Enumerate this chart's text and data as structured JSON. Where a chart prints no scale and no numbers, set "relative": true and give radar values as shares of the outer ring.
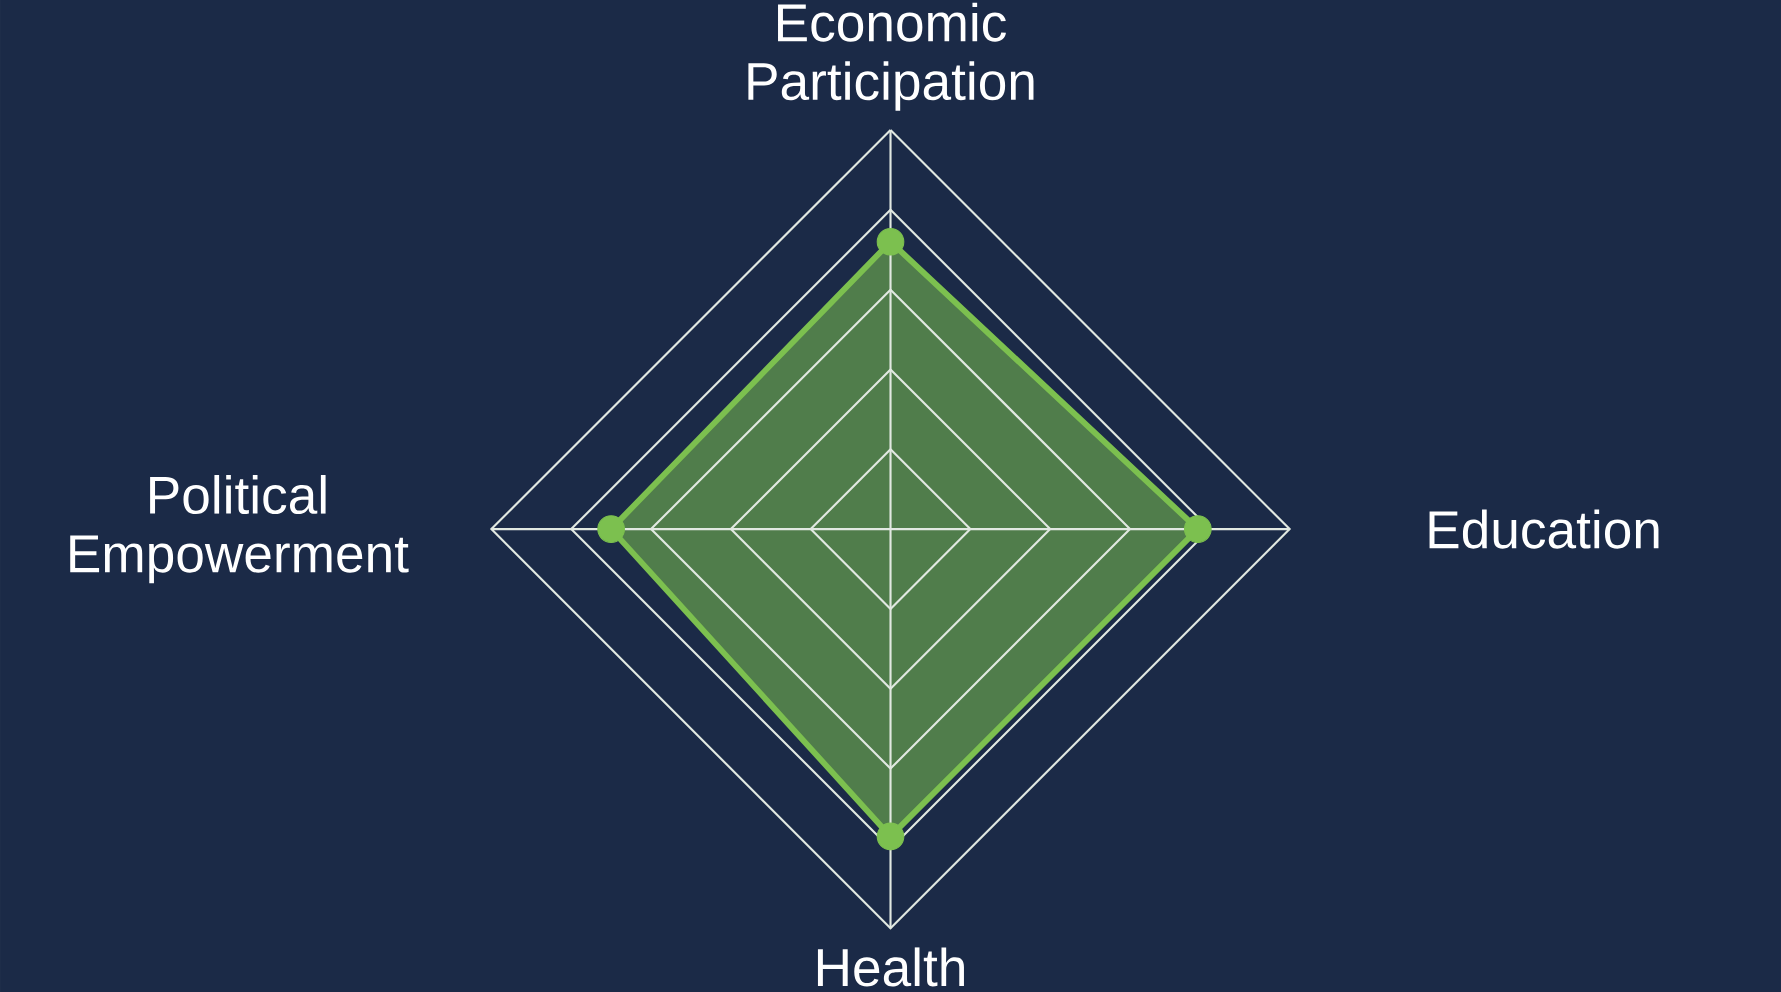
{
  "chart_data": {
    "type": "radar",
    "relative": true,
    "grid": true,
    "marker": "circle",
    "categories": [
      "Economic Participation",
      "Education",
      "Health",
      "Political Empowerment"
    ],
    "series": [
      {
        "color": "#7cc04f",
        "values": [
          0.72,
          0.77,
          0.77,
          0.7
        ]
      }
    ]
  }
}
